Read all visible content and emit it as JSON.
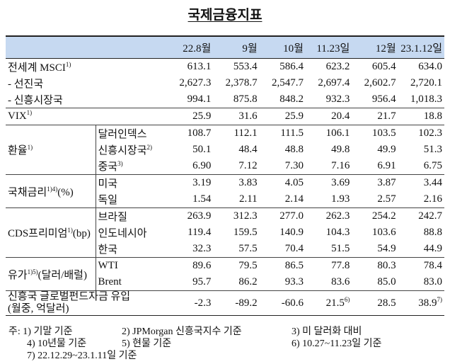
{
  "title": "국제금융지표",
  "table": {
    "columns": [
      "22.8월",
      "9월",
      "10월",
      "11.23일",
      "12월",
      "23.1.12일"
    ],
    "rows": [
      {
        "label": {
          "text": "전세계 MSCI",
          "sup": "1)"
        },
        "values": [
          "613.1",
          "553.4",
          "586.4",
          "623.2",
          "605.4",
          "634.0"
        ]
      },
      {
        "label": {
          "text": "- 선진국"
        },
        "values": [
          "2,627.3",
          "2,378.7",
          "2,547.7",
          "2,697.4",
          "2,602.7",
          "2,720.1"
        ]
      },
      {
        "label": {
          "text": "- 신흥시장국"
        },
        "values": [
          "994.1",
          "875.8",
          "848.2",
          "932.3",
          "956.4",
          "1,018.3"
        ]
      },
      {
        "label": {
          "text": "VIX",
          "sup": "1)"
        },
        "values": [
          "25.9",
          "31.6",
          "25.9",
          "20.4",
          "21.7",
          "18.8"
        ]
      },
      {
        "group": {
          "text": "환율",
          "sup": "1)"
        },
        "items": [
          {
            "label": {
              "text": "달러인덱스"
            },
            "values": [
              "108.7",
              "112.1",
              "111.5",
              "106.1",
              "103.5",
              "102.3"
            ]
          },
          {
            "label": {
              "text": "신흥시장국",
              "sup": "2)"
            },
            "values": [
              "50.1",
              "48.4",
              "48.8",
              "49.8",
              "49.9",
              "51.3"
            ]
          },
          {
            "label": {
              "text": "중국",
              "sup": "3)"
            },
            "values": [
              "6.90",
              "7.12",
              "7.30",
              "7.16",
              "6.91",
              "6.75"
            ]
          }
        ]
      },
      {
        "group": {
          "text": "국채금리",
          "sup": "1)4)",
          "suffix": "(%)"
        },
        "items": [
          {
            "label": {
              "text": "미국"
            },
            "values": [
              "3.19",
              "3.83",
              "4.05",
              "3.69",
              "3.87",
              "3.44"
            ]
          },
          {
            "label": {
              "text": "독일"
            },
            "values": [
              "1.54",
              "2.11",
              "2.14",
              "1.93",
              "2.57",
              "2.16"
            ]
          }
        ]
      },
      {
        "group": {
          "text": "CDS프리미엄",
          "sup": "1)",
          "suffix": "(bp)"
        },
        "items": [
          {
            "label": {
              "text": "브라질"
            },
            "values": [
              "263.9",
              "312.3",
              "277.0",
              "262.3",
              "254.2",
              "242.7"
            ]
          },
          {
            "label": {
              "text": "인도네시아"
            },
            "values": [
              "119.4",
              "159.5",
              "140.9",
              "104.3",
              "103.6",
              "88.8"
            ]
          },
          {
            "label": {
              "text": "한국"
            },
            "values": [
              "32.3",
              "57.5",
              "70.4",
              "51.5",
              "54.9",
              "44.9"
            ]
          }
        ]
      },
      {
        "group": {
          "text": "유가",
          "sup": "1)5)",
          "suffix": "(달러/배럴)"
        },
        "items": [
          {
            "label": {
              "text": "WTI"
            },
            "values": [
              "89.6",
              "79.5",
              "86.5",
              "77.8",
              "80.3",
              "78.4"
            ]
          },
          {
            "label": {
              "text": "Brent"
            },
            "values": [
              "95.7",
              "86.2",
              "93.3",
              "83.6",
              "85.0",
              "83.0"
            ]
          }
        ]
      },
      {
        "label": {
          "text": "신흥국 글로벌펀드자금 유입",
          "line2": "(월중, 억달러)"
        },
        "values": [
          "-2.3",
          "-89.2",
          "-60.6",
          {
            "text": "21.5",
            "sup": "6)"
          },
          "28.5",
          {
            "text": "38.9",
            "sup": "7)"
          }
        ]
      }
    ]
  },
  "notes": {
    "prefix": "주:",
    "items": [
      "1) 기말 기준",
      "2) JPMorgan 신흥국지수 기준",
      "3) 미 달러화 대비",
      "4) 10년물 기준",
      "5) 현물 기준",
      "6) 10.27~11.23일 기준",
      "7) 22.12.29~23.1.11일 기준"
    ]
  }
}
